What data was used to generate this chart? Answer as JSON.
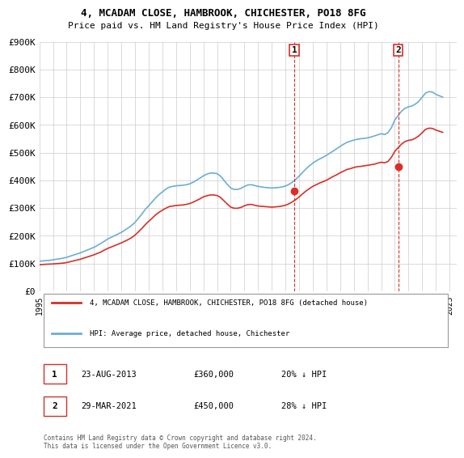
{
  "title": "4, MCADAM CLOSE, HAMBROOK, CHICHESTER, PO18 8FG",
  "subtitle": "Price paid vs. HM Land Registry's House Price Index (HPI)",
  "ylabel": "",
  "xlabel": "",
  "hpi_color": "#6baed6",
  "price_color": "#d73027",
  "marker_color": "#d73027",
  "vline_color": "#d73027",
  "grid_color": "#cccccc",
  "background_color": "#ffffff",
  "ylim": [
    0,
    900000
  ],
  "yticks": [
    0,
    100000,
    200000,
    300000,
    400000,
    500000,
    600000,
    700000,
    800000,
    900000
  ],
  "ytick_labels": [
    "£0",
    "£100K",
    "£200K",
    "£300K",
    "£400K",
    "£500K",
    "£600K",
    "£700K",
    "£800K",
    "£900K"
  ],
  "xlim_start": 1995.0,
  "xlim_end": 2025.5,
  "sale1_x": 2013.645,
  "sale1_y": 360000,
  "sale1_label": "1",
  "sale1_date": "23-AUG-2013",
  "sale1_price": "£360,000",
  "sale1_hpi": "20% ↓ HPI",
  "sale2_x": 2021.245,
  "sale2_y": 450000,
  "sale2_label": "2",
  "sale2_date": "29-MAR-2021",
  "sale2_price": "£450,000",
  "sale2_hpi": "28% ↓ HPI",
  "legend_line1": "4, MCADAM CLOSE, HAMBROOK, CHICHESTER, PO18 8FG (detached house)",
  "legend_line2": "HPI: Average price, detached house, Chichester",
  "footer": "Contains HM Land Registry data © Crown copyright and database right 2024.\nThis data is licensed under the Open Government Licence v3.0.",
  "hpi_data_x": [
    1995.0,
    1995.25,
    1995.5,
    1995.75,
    1996.0,
    1996.25,
    1996.5,
    1996.75,
    1997.0,
    1997.25,
    1997.5,
    1997.75,
    1998.0,
    1998.25,
    1998.5,
    1998.75,
    1999.0,
    1999.25,
    1999.5,
    1999.75,
    2000.0,
    2000.25,
    2000.5,
    2000.75,
    2001.0,
    2001.25,
    2001.5,
    2001.75,
    2002.0,
    2002.25,
    2002.5,
    2002.75,
    2003.0,
    2003.25,
    2003.5,
    2003.75,
    2004.0,
    2004.25,
    2004.5,
    2004.75,
    2005.0,
    2005.25,
    2005.5,
    2005.75,
    2006.0,
    2006.25,
    2006.5,
    2006.75,
    2007.0,
    2007.25,
    2007.5,
    2007.75,
    2008.0,
    2008.25,
    2008.5,
    2008.75,
    2009.0,
    2009.25,
    2009.5,
    2009.75,
    2010.0,
    2010.25,
    2010.5,
    2010.75,
    2011.0,
    2011.25,
    2011.5,
    2011.75,
    2012.0,
    2012.25,
    2012.5,
    2012.75,
    2013.0,
    2013.25,
    2013.5,
    2013.75,
    2014.0,
    2014.25,
    2014.5,
    2014.75,
    2015.0,
    2015.25,
    2015.5,
    2015.75,
    2016.0,
    2016.25,
    2016.5,
    2016.75,
    2017.0,
    2017.25,
    2017.5,
    2017.75,
    2018.0,
    2018.25,
    2018.5,
    2018.75,
    2019.0,
    2019.25,
    2019.5,
    2019.75,
    2020.0,
    2020.25,
    2020.5,
    2020.75,
    2021.0,
    2021.25,
    2021.5,
    2021.75,
    2022.0,
    2022.25,
    2022.5,
    2022.75,
    2023.0,
    2023.25,
    2023.5,
    2023.75,
    2024.0,
    2024.25,
    2024.5
  ],
  "hpi_data_y": [
    108000,
    109000,
    110000,
    111000,
    113000,
    115000,
    117000,
    119000,
    122000,
    126000,
    130000,
    134000,
    138000,
    143000,
    148000,
    153000,
    158000,
    165000,
    172000,
    180000,
    188000,
    194000,
    200000,
    206000,
    212000,
    220000,
    228000,
    237000,
    248000,
    263000,
    278000,
    295000,
    308000,
    322000,
    336000,
    348000,
    358000,
    368000,
    375000,
    378000,
    380000,
    381000,
    382000,
    384000,
    387000,
    393000,
    400000,
    408000,
    416000,
    422000,
    426000,
    426000,
    424000,
    415000,
    400000,
    385000,
    372000,
    367000,
    367000,
    371000,
    378000,
    383000,
    384000,
    381000,
    378000,
    376000,
    374000,
    373000,
    372000,
    373000,
    374000,
    376000,
    379000,
    385000,
    393000,
    403000,
    415000,
    428000,
    441000,
    452000,
    462000,
    470000,
    477000,
    483000,
    490000,
    498000,
    506000,
    514000,
    522000,
    530000,
    537000,
    541000,
    545000,
    548000,
    550000,
    551000,
    553000,
    556000,
    560000,
    564000,
    568000,
    565000,
    572000,
    590000,
    618000,
    634000,
    650000,
    660000,
    665000,
    668000,
    675000,
    685000,
    700000,
    715000,
    720000,
    718000,
    710000,
    705000,
    700000
  ],
  "price_data_x": [
    1995.0,
    1995.25,
    1995.5,
    1995.75,
    1996.0,
    1996.25,
    1996.5,
    1996.75,
    1997.0,
    1997.25,
    1997.5,
    1997.75,
    1998.0,
    1998.25,
    1998.5,
    1998.75,
    1999.0,
    1999.25,
    1999.5,
    1999.75,
    2000.0,
    2000.25,
    2000.5,
    2000.75,
    2001.0,
    2001.25,
    2001.5,
    2001.75,
    2002.0,
    2002.25,
    2002.5,
    2002.75,
    2003.0,
    2003.25,
    2003.5,
    2003.75,
    2004.0,
    2004.25,
    2004.5,
    2004.75,
    2005.0,
    2005.25,
    2005.5,
    2005.75,
    2006.0,
    2006.25,
    2006.5,
    2006.75,
    2007.0,
    2007.25,
    2007.5,
    2007.75,
    2008.0,
    2008.25,
    2008.5,
    2008.75,
    2009.0,
    2009.25,
    2009.5,
    2009.75,
    2010.0,
    2010.25,
    2010.5,
    2010.75,
    2011.0,
    2011.25,
    2011.5,
    2011.75,
    2012.0,
    2012.25,
    2012.5,
    2012.75,
    2013.0,
    2013.25,
    2013.5,
    2013.75,
    2014.0,
    2014.25,
    2014.5,
    2014.75,
    2015.0,
    2015.25,
    2015.5,
    2015.75,
    2016.0,
    2016.25,
    2016.5,
    2016.75,
    2017.0,
    2017.25,
    2017.5,
    2017.75,
    2018.0,
    2018.25,
    2018.5,
    2018.75,
    2019.0,
    2019.25,
    2019.5,
    2019.75,
    2020.0,
    2020.25,
    2020.5,
    2020.75,
    2021.0,
    2021.25,
    2021.5,
    2021.75,
    2022.0,
    2022.25,
    2022.5,
    2022.75,
    2023.0,
    2023.25,
    2023.5,
    2023.75,
    2024.0,
    2024.25,
    2024.5
  ],
  "price_data_y": [
    95000,
    96000,
    97000,
    97500,
    98000,
    99000,
    100000,
    101000,
    103000,
    106000,
    109000,
    112000,
    115000,
    119000,
    123000,
    127000,
    131000,
    136000,
    141000,
    148000,
    154000,
    159000,
    164000,
    169000,
    174000,
    180000,
    186000,
    193000,
    202000,
    214000,
    226000,
    240000,
    252000,
    263000,
    275000,
    284000,
    292000,
    299000,
    305000,
    307000,
    309000,
    310000,
    311000,
    313000,
    316000,
    321000,
    327000,
    333000,
    340000,
    344000,
    347000,
    347000,
    345000,
    338000,
    326000,
    314000,
    303000,
    299000,
    299000,
    302000,
    308000,
    312000,
    313000,
    310000,
    307000,
    306000,
    305000,
    304000,
    303000,
    304000,
    305000,
    307000,
    310000,
    315000,
    322000,
    330000,
    340000,
    351000,
    361000,
    370000,
    378000,
    384000,
    390000,
    395000,
    400000,
    407000,
    414000,
    420000,
    427000,
    433000,
    439000,
    442000,
    446000,
    449000,
    450000,
    452000,
    454000,
    456000,
    458000,
    462000,
    465000,
    463000,
    468000,
    483000,
    505000,
    518000,
    531000,
    540000,
    544000,
    546000,
    552000,
    560000,
    572000,
    584000,
    588000,
    587000,
    581000,
    577000,
    573000
  ]
}
